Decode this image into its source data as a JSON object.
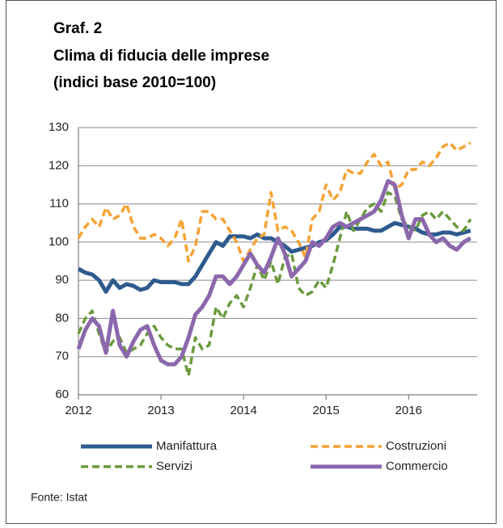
{
  "chart_data": {
    "type": "line",
    "title": "Graf. 2",
    "subtitle": "Clima di fiducia delle imprese",
    "subtitle2": "(indici base 2010=100)",
    "source": "Fonte: Istat",
    "x": [
      2012,
      2012.083,
      2012.167,
      2012.25,
      2012.333,
      2012.417,
      2012.5,
      2012.583,
      2012.667,
      2012.75,
      2012.833,
      2012.917,
      2013,
      2013.083,
      2013.167,
      2013.25,
      2013.333,
      2013.417,
      2013.5,
      2013.583,
      2013.667,
      2013.75,
      2013.833,
      2013.917,
      2014,
      2014.083,
      2014.167,
      2014.25,
      2014.333,
      2014.417,
      2014.5,
      2014.583,
      2014.667,
      2014.75,
      2014.833,
      2014.917,
      2015,
      2015.083,
      2015.167,
      2015.25,
      2015.333,
      2015.417,
      2015.5,
      2015.583,
      2015.667,
      2015.75,
      2015.833,
      2015.917,
      2016,
      2016.083,
      2016.167,
      2016.25,
      2016.333,
      2016.417,
      2016.5,
      2016.583,
      2016.667,
      2016.75
    ],
    "series": [
      {
        "name": "Manifattura",
        "color": "#2e5b8e",
        "dashed": false,
        "values": [
          93,
          92,
          91.5,
          90,
          87,
          90,
          88,
          89,
          88.5,
          87.5,
          88,
          90,
          89.5,
          89.5,
          89.5,
          89,
          89,
          91,
          94,
          97,
          100,
          99,
          101.5,
          101.5,
          101.5,
          101,
          102,
          101,
          101,
          100,
          99,
          97.5,
          98,
          98.5,
          99,
          100,
          100.5,
          102,
          104,
          104,
          103.5,
          103.5,
          103.5,
          103,
          103,
          104,
          105,
          104.5,
          104,
          103.5,
          102.5,
          102,
          102,
          102.5,
          102.5,
          102,
          102.5,
          103
        ]
      },
      {
        "name": "Costruzioni",
        "color": "#f6a234",
        "dashed": true,
        "values": [
          101,
          104,
          106,
          104,
          109,
          106,
          107,
          110,
          104,
          101,
          101,
          102,
          101,
          99,
          101,
          106,
          95,
          99,
          108,
          108,
          106,
          106,
          103,
          100,
          95,
          98,
          101,
          102,
          113,
          103,
          104,
          103,
          100,
          96,
          106,
          108,
          115,
          111,
          113,
          119,
          118,
          118,
          121,
          123,
          120,
          121,
          114,
          115,
          119,
          119,
          121,
          120,
          122,
          125,
          126,
          124,
          125,
          126
        ]
      },
      {
        "name": "Servizi",
        "color": "#6b9a3d",
        "dashed": true,
        "values": [
          76,
          80,
          82,
          76,
          71,
          74,
          75,
          71,
          72,
          73,
          76,
          78,
          75,
          73,
          72,
          72,
          65,
          75,
          72,
          73,
          83,
          80,
          84,
          86,
          83,
          88,
          94,
          90,
          95,
          89,
          96,
          97,
          88,
          86,
          87,
          90,
          88,
          94,
          101,
          108,
          103,
          106,
          109,
          110,
          108,
          113,
          112,
          106,
          104,
          103,
          107,
          108,
          106,
          108,
          106,
          104,
          103,
          106
        ]
      },
      {
        "name": "Commercio",
        "color": "#8b68ac",
        "dashed": false,
        "values": [
          72,
          77,
          80,
          78,
          71,
          82,
          73,
          70,
          74,
          77,
          78,
          73,
          69,
          68,
          68,
          70,
          75,
          81,
          83,
          86,
          91,
          91,
          89,
          91,
          94,
          97,
          94,
          92,
          96,
          101,
          97,
          91,
          93,
          95,
          100,
          99,
          101,
          104,
          105,
          104,
          105,
          106,
          107,
          108,
          111,
          116,
          115,
          107,
          101,
          106,
          106,
          102,
          100,
          101,
          99,
          98,
          100,
          101
        ]
      }
    ],
    "xlim": [
      2012,
      2016.83
    ],
    "xticks": [
      2012,
      2013,
      2014,
      2015,
      2016
    ],
    "ylim": [
      60,
      130
    ],
    "yticks": [
      60,
      70,
      80,
      90,
      100,
      110,
      120,
      130
    ],
    "grid": true
  }
}
